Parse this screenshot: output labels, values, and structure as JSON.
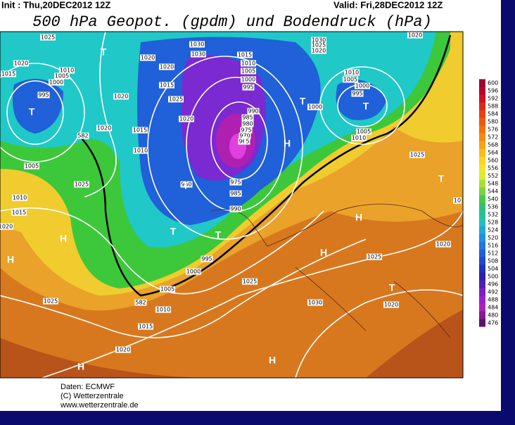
{
  "header": {
    "init": "Init : Thu,20DEC2012 12Z",
    "valid": "Valid: Fri,28DEC2012 12Z",
    "title": "500 hPa Geopot. (gpdm) und Bodendruck (hPa)"
  },
  "colorbar": {
    "labels": [
      600,
      596,
      592,
      588,
      584,
      580,
      576,
      572,
      568,
      564,
      560,
      556,
      552,
      548,
      544,
      540,
      536,
      532,
      528,
      524,
      520,
      516,
      512,
      508,
      504,
      500,
      496,
      492,
      488,
      484,
      480,
      476
    ]
  },
  "isobar_labels": [
    "1025",
    "1020",
    "1015",
    "1010",
    "1005",
    "1000",
    "995",
    "1020",
    "1020",
    "1015",
    "1020",
    "1030",
    "1030",
    "1025",
    "1020",
    "1015",
    "1010",
    "1015",
    "1010",
    "1005",
    "1000",
    "995",
    "990",
    "985",
    "980",
    "975",
    "970",
    "965",
    "1030",
    "1025",
    "1020",
    "1010",
    "1005",
    "1000",
    "995",
    "1000",
    "1005",
    "1010",
    "1020",
    "1025",
    "1020",
    "1005",
    "1025",
    "1010",
    "1015",
    "1020",
    "980",
    "975",
    "985",
    "990",
    "995",
    "1000",
    "1005",
    "1010",
    "1015",
    "1020",
    "1025",
    "1025",
    "1030",
    "1025",
    "1020",
    "1020",
    "10",
    "582",
    "582"
  ],
  "centers": [
    "T",
    "T",
    "T",
    "T",
    "T",
    "T",
    "T",
    "T",
    "T",
    "T",
    "H",
    "H",
    "H",
    "H",
    "H",
    "H",
    "H"
  ],
  "footer": [
    "Daten: ECMWF",
    "(C) Wetterzentrale",
    "www.wetterzentrale.de"
  ]
}
